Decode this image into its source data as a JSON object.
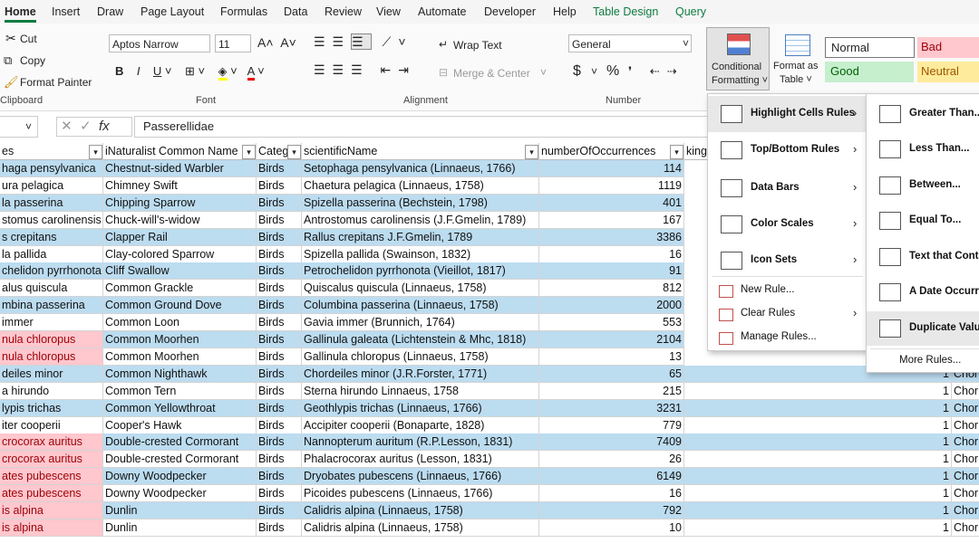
{
  "tabs": [
    "Home",
    "Insert",
    "Draw",
    "Page Layout",
    "Formulas",
    "Data",
    "Review",
    "View",
    "Automate",
    "Developer",
    "Help",
    "Table Design",
    "Query"
  ],
  "clipboard": {
    "cut": "Cut",
    "copy": "Copy",
    "format_painter": "Format Painter",
    "label": "Clipboard"
  },
  "font": {
    "name": "Aptos Narrow",
    "size": "11",
    "label": "Font"
  },
  "alignment": {
    "wrap": "Wrap Text",
    "merge": "Merge & Center",
    "label": "Alignment"
  },
  "number": {
    "format": "General",
    "currency": "$",
    "percent": "%",
    "label": "Number"
  },
  "styles": {
    "conditional": [
      "Conditional",
      "Formatting"
    ],
    "format_table": [
      "Format as",
      "Table"
    ],
    "normal": "Normal",
    "bad": "Bad",
    "good": "Good",
    "neutral": "Neutral"
  },
  "formula_bar": {
    "fx": "fx",
    "value": "Passerellidae"
  },
  "headers": [
    "es",
    "iNaturalist Common Name",
    "Categ",
    "scientificName",
    "numberOfOccurrences",
    "king"
  ],
  "rows": [
    {
      "cells": [
        "haga pensylvanica",
        "Chestnut-sided Warbler",
        "Birds",
        "Setophaga pensylvanica (Linnaeus, 1766)",
        114
      ],
      "dup": false
    },
    {
      "cells": [
        "ura pelagica",
        "Chimney Swift",
        "Birds",
        "Chaetura pelagica (Linnaeus, 1758)",
        1119
      ],
      "dup": false
    },
    {
      "cells": [
        "la passerina",
        "Chipping Sparrow",
        "Birds",
        "Spizella passerina (Bechstein, 1798)",
        401
      ],
      "dup": false
    },
    {
      "cells": [
        "stomus carolinensis",
        "Chuck-will's-widow",
        "Birds",
        "Antrostomus carolinensis (J.F.Gmelin, 1789)",
        167
      ],
      "dup": false
    },
    {
      "cells": [
        "s crepitans",
        "Clapper Rail",
        "Birds",
        "Rallus crepitans J.F.Gmelin, 1789",
        3386
      ],
      "dup": false
    },
    {
      "cells": [
        "la pallida",
        "Clay-colored Sparrow",
        "Birds",
        "Spizella pallida (Swainson, 1832)",
        16
      ],
      "dup": false
    },
    {
      "cells": [
        "chelidon pyrrhonota",
        "Cliff Swallow",
        "Birds",
        "Petrochelidon pyrrhonota (Vieillot, 1817)",
        91
      ],
      "dup": false
    },
    {
      "cells": [
        "alus quiscula",
        "Common Grackle",
        "Birds",
        "Quiscalus quiscula (Linnaeus, 1758)",
        812
      ],
      "dup": false
    },
    {
      "cells": [
        "mbina passerina",
        "Common Ground Dove",
        "Birds",
        "Columbina passerina (Linnaeus, 1758)",
        2000
      ],
      "dup": false
    },
    {
      "cells": [
        "immer",
        "Common Loon",
        "Birds",
        "Gavia immer (Brunnich, 1764)",
        553
      ],
      "dup": false
    },
    {
      "cells": [
        "nula chloropus",
        "Common Moorhen",
        "Birds",
        "Gallinula galeata (Lichtenstein & Mhc, 1818)",
        2104
      ],
      "dup": true
    },
    {
      "cells": [
        "nula chloropus",
        "Common Moorhen",
        "Birds",
        "Gallinula chloropus (Linnaeus, 1758)",
        13
      ],
      "dup": true
    },
    {
      "cells": [
        "deiles minor",
        "Common Nighthawk",
        "Birds",
        "Chordeiles minor (J.R.Forster, 1771)",
        65,
        1,
        "Chor"
      ],
      "dup": false
    },
    {
      "cells": [
        "a hirundo",
        "Common Tern",
        "Birds",
        "Sterna hirundo Linnaeus, 1758",
        215,
        1,
        "Chor"
      ],
      "dup": false
    },
    {
      "cells": [
        "lypis trichas",
        "Common Yellowthroat",
        "Birds",
        "Geothlypis trichas (Linnaeus, 1766)",
        3231,
        1,
        "Chor"
      ],
      "dup": false
    },
    {
      "cells": [
        "iter cooperii",
        "Cooper's Hawk",
        "Birds",
        "Accipiter cooperii (Bonaparte, 1828)",
        779,
        1,
        "Chor"
      ],
      "dup": false
    },
    {
      "cells": [
        "crocorax auritus",
        "Double-crested Cormorant",
        "Birds",
        "Nannopterum auritum (R.P.Lesson, 1831)",
        7409,
        1,
        "Chor"
      ],
      "dup": true
    },
    {
      "cells": [
        "crocorax auritus",
        "Double-crested Cormorant",
        "Birds",
        "Phalacrocorax auritus (Lesson, 1831)",
        26,
        1,
        "Chor"
      ],
      "dup": true
    },
    {
      "cells": [
        "ates pubescens",
        "Downy Woodpecker",
        "Birds",
        "Dryobates pubescens (Linnaeus, 1766)",
        6149,
        1,
        "Chor"
      ],
      "dup": true
    },
    {
      "cells": [
        "ates pubescens",
        "Downy Woodpecker",
        "Birds",
        "Picoides pubescens (Linnaeus, 1766)",
        16,
        1,
        "Chor"
      ],
      "dup": true
    },
    {
      "cells": [
        "is alpina",
        "Dunlin",
        "Birds",
        "Calidris alpina (Linnaeus, 1758)",
        792,
        1,
        "Chor"
      ],
      "dup": true
    },
    {
      "cells": [
        "is alpina",
        "Dunlin",
        "Birds",
        "Calidris alpina (Linnaeus, 1758)",
        10,
        1,
        "Chor"
      ],
      "dup": true
    }
  ],
  "menu": [
    "Highlight Cells Rules",
    "Top/Bottom Rules",
    "Data Bars",
    "Color Scales",
    "Icon Sets",
    "New Rule...",
    "Clear Rules",
    "Manage Rules..."
  ],
  "submenu": [
    "Greater Than...",
    "Less Than...",
    "Between...",
    "Equal To...",
    "Text that Conta",
    "A Date Occurri",
    "Duplicate Valu",
    "More Rules..."
  ]
}
